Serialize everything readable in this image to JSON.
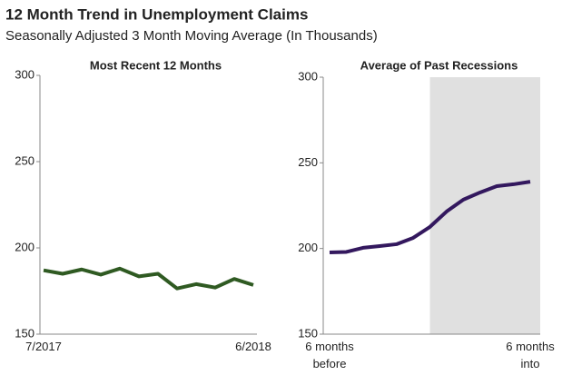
{
  "header": {
    "title": "12 Month Trend in Unemployment Claims",
    "subtitle": "Seasonally Adjusted 3 Month Moving Average (In Thousands)"
  },
  "chart_data": [
    {
      "type": "line",
      "title": "Most Recent 12 Months",
      "categories": [
        "7/2017",
        null,
        null,
        null,
        null,
        null,
        null,
        null,
        null,
        null,
        null,
        "6/2018"
      ],
      "series": [
        {
          "name": "Most Recent 12 Months",
          "color": "#2f5a22",
          "values": [
            187,
            185,
            187.5,
            184.5,
            188,
            183.5,
            185,
            176.5,
            179,
            177,
            182,
            178.5
          ]
        }
      ],
      "ylim": [
        150,
        300
      ],
      "yticks": [
        150,
        200,
        250,
        300
      ]
    },
    {
      "type": "line",
      "title": "Average of Past Recessions",
      "categories": [
        "6 months before",
        null,
        null,
        null,
        null,
        null,
        null,
        null,
        null,
        null,
        null,
        null,
        "6 months into"
      ],
      "series": [
        {
          "name": "Average of Past Recessions",
          "color": "#33185e",
          "values": [
            197.7,
            198,
            200.4,
            201.4,
            202.5,
            206.2,
            212.6,
            221.6,
            228.5,
            232.7,
            236.4,
            237.5,
            239
          ]
        }
      ],
      "shade_from_index": 6,
      "shade_color": "#e0e0e0",
      "ylim": [
        150,
        300
      ],
      "yticks": [
        150,
        200,
        250,
        300
      ]
    }
  ]
}
